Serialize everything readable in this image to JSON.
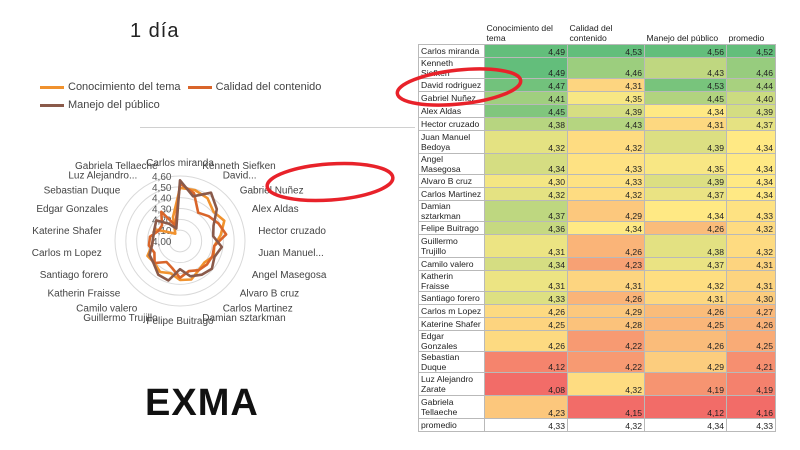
{
  "slide": {
    "title": "1 día",
    "brand": "EXMA"
  },
  "colors": {
    "conocimiento": "#f0922e",
    "calidad": "#d9652a",
    "manejo": "#8a5a4a",
    "circle": "#e8222a",
    "grid": "#d9d9d9"
  },
  "chart_data": {
    "type": "radar",
    "categories": [
      "Carlos miranda",
      "Kenneth Siefken",
      "David rodriguez",
      "Gabriel Nuñez",
      "Alex Aldas",
      "Hector cruzado",
      "Juan Manuel Bedoya",
      "Angel Masegosa",
      "Alvaro B cruz",
      "Carlos Martinez",
      "Damian sztarkman",
      "Felipe Buitrago",
      "Guillermo Trujillo",
      "Camilo valero",
      "Katherin Fraisse",
      "Santiago forero",
      "Carlos m Lopez",
      "Katerine Shafer",
      "Edgar Gonzales",
      "Sebastian Duque",
      "Luz Alejandro Zarate",
      "Gabriela Tellaeche"
    ],
    "axis_labels": [
      "Carlos miranda",
      "Kenneth Siefken",
      "David...",
      "Gabriel Nuñez",
      "Alex Aldas",
      "Hector cruzado",
      "Juan Manuel...",
      "Angel Masegosa",
      "Alvaro B cruz",
      "Carlos Martinez",
      "Damian sztarkman",
      "Felipe Buitrago",
      "Guillermo Trujillo",
      "Camilo valero",
      "Katherin Fraisse",
      "Santiago forero",
      "Carlos m Lopez",
      "Katerine Shafer",
      "Edgar Gonzales",
      "Sebastian Duque",
      "Luz Alejandro...",
      "Gabriela Tellaeche"
    ],
    "series": [
      {
        "name": "Conocimiento del tema",
        "values": [
          4.49,
          4.49,
          4.47,
          4.41,
          4.45,
          4.38,
          4.32,
          4.34,
          4.3,
          4.32,
          4.37,
          4.36,
          4.31,
          4.34,
          4.31,
          4.33,
          4.26,
          4.25,
          4.26,
          4.12,
          4.08,
          4.23
        ]
      },
      {
        "name": "Calidad del contenido",
        "values": [
          4.53,
          4.46,
          4.31,
          4.35,
          4.39,
          4.43,
          4.32,
          4.33,
          4.33,
          4.32,
          4.29,
          4.34,
          4.26,
          4.23,
          4.31,
          4.26,
          4.29,
          4.28,
          4.22,
          4.22,
          4.32,
          4.15
        ]
      },
      {
        "name": "Manejo del público",
        "values": [
          4.56,
          4.43,
          4.53,
          4.45,
          4.34,
          4.31,
          4.39,
          4.35,
          4.39,
          4.37,
          4.34,
          4.26,
          4.38,
          4.37,
          4.32,
          4.31,
          4.26,
          4.25,
          4.26,
          4.29,
          4.19,
          4.12
        ]
      }
    ],
    "r_ticks": [
      "4,00",
      "4,10",
      "4,20",
      "4,30",
      "4,40",
      "4,50",
      "4,60"
    ],
    "rlim": [
      4.0,
      4.6
    ],
    "legend": "top-left",
    "grid": true
  },
  "table": {
    "headers": [
      "Conocimiento del tema",
      "Calidad del contenido",
      "Manejo del público",
      "promedio"
    ],
    "rows": [
      [
        "Carlos miranda",
        "4,49",
        "4,53",
        "4,56",
        "4,52"
      ],
      [
        "Kenneth Siefken",
        "4,49",
        "4,46",
        "4,43",
        "4,46"
      ],
      [
        "David rodriguez",
        "4,47",
        "4,31",
        "4,53",
        "4,44"
      ],
      [
        "Gabriel Nuñez",
        "4,41",
        "4,35",
        "4,45",
        "4,40"
      ],
      [
        "Alex Aldas",
        "4,45",
        "4,39",
        "4,34",
        "4,39"
      ],
      [
        "Hector cruzado",
        "4,38",
        "4,43",
        "4,31",
        "4,37"
      ],
      [
        "Juan Manuel Bedoya",
        "4,32",
        "4,32",
        "4,39",
        "4,34"
      ],
      [
        "Angel Masegosa",
        "4,34",
        "4,33",
        "4,35",
        "4,34"
      ],
      [
        "Alvaro B cruz",
        "4,30",
        "4,33",
        "4,39",
        "4,34"
      ],
      [
        "Carlos Martinez",
        "4,32",
        "4,32",
        "4,37",
        "4,34"
      ],
      [
        "Damian sztarkman",
        "4,37",
        "4,29",
        "4,34",
        "4,33"
      ],
      [
        "Felipe Buitrago",
        "4,36",
        "4,34",
        "4,26",
        "4,32"
      ],
      [
        "Guillermo Trujillo",
        "4,31",
        "4,26",
        "4,38",
        "4,32"
      ],
      [
        "Camilo valero",
        "4,34",
        "4,23",
        "4,37",
        "4,31"
      ],
      [
        "Katherin Fraisse",
        "4,31",
        "4,31",
        "4,32",
        "4,31"
      ],
      [
        "Santiago forero",
        "4,33",
        "4,26",
        "4,31",
        "4,30"
      ],
      [
        "Carlos m Lopez",
        "4,26",
        "4,29",
        "4,26",
        "4,27"
      ],
      [
        "Katerine Shafer",
        "4,25",
        "4,28",
        "4,25",
        "4,26"
      ],
      [
        "Edgar Gonzales",
        "4,26",
        "4,22",
        "4,26",
        "4,25"
      ],
      [
        "Sebastian Duque",
        "4,12",
        "4,22",
        "4,29",
        "4,21"
      ],
      [
        "Luz Alejandro Zarate",
        "4,08",
        "4,32",
        "4,19",
        "4,19"
      ],
      [
        "Gabriela Tellaeche",
        "4,23",
        "4,15",
        "4,12",
        "4,16"
      ],
      [
        "promedio",
        "4,33",
        "4,32",
        "4,34",
        "4,33"
      ]
    ]
  }
}
